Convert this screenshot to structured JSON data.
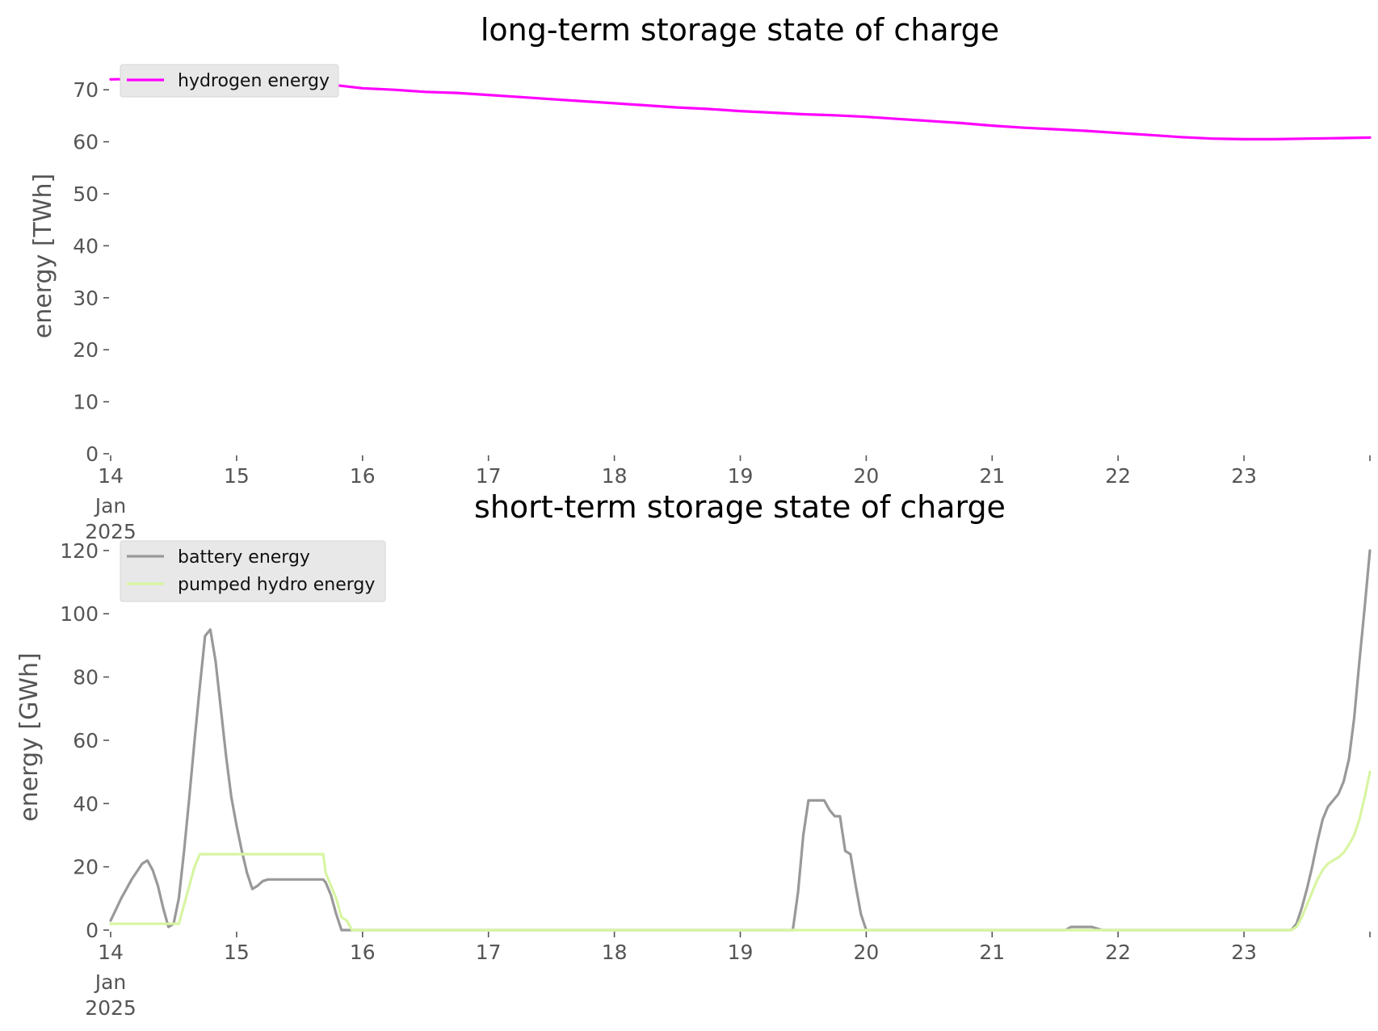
{
  "chart_data": [
    {
      "type": "line",
      "title": "long-term storage state of charge",
      "ylabel": "energy [TWh]",
      "xlim": [
        0,
        240
      ],
      "ylim": [
        0,
        75
      ],
      "x_ticks": [
        {
          "x": 0,
          "label": "14",
          "sub": [
            "Jan",
            "2025"
          ]
        },
        {
          "x": 24,
          "label": "15"
        },
        {
          "x": 48,
          "label": "16"
        },
        {
          "x": 72,
          "label": "17"
        },
        {
          "x": 96,
          "label": "18"
        },
        {
          "x": 120,
          "label": "19"
        },
        {
          "x": 144,
          "label": "20"
        },
        {
          "x": 168,
          "label": "21"
        },
        {
          "x": 192,
          "label": "22"
        },
        {
          "x": 216,
          "label": "23"
        },
        {
          "x": 240,
          "label": ""
        }
      ],
      "y_ticks": [
        0,
        10,
        20,
        30,
        40,
        50,
        60,
        70
      ],
      "grid": false,
      "legend": "top-left",
      "series": [
        {
          "name": "hydrogen energy",
          "color": "#ff00ff",
          "points": [
            [
              0,
              72
            ],
            [
              6,
              72.1
            ],
            [
              12,
              72
            ],
            [
              18,
              72
            ],
            [
              24,
              71.9
            ],
            [
              30,
              71.8
            ],
            [
              36,
              71.5
            ],
            [
              42,
              71
            ],
            [
              48,
              70.3
            ],
            [
              54,
              70
            ],
            [
              60,
              69.6
            ],
            [
              66,
              69.4
            ],
            [
              72,
              69
            ],
            [
              78,
              68.6
            ],
            [
              84,
              68.2
            ],
            [
              90,
              67.8
            ],
            [
              96,
              67.4
            ],
            [
              102,
              67
            ],
            [
              108,
              66.6
            ],
            [
              114,
              66.3
            ],
            [
              120,
              65.9
            ],
            [
              126,
              65.6
            ],
            [
              132,
              65.3
            ],
            [
              138,
              65.1
            ],
            [
              144,
              64.8
            ],
            [
              150,
              64.4
            ],
            [
              156,
              64
            ],
            [
              162,
              63.6
            ],
            [
              168,
              63.1
            ],
            [
              174,
              62.7
            ],
            [
              180,
              62.4
            ],
            [
              186,
              62.1
            ],
            [
              192,
              61.7
            ],
            [
              198,
              61.3
            ],
            [
              204,
              60.9
            ],
            [
              210,
              60.6
            ],
            [
              216,
              60.5
            ],
            [
              222,
              60.5
            ],
            [
              228,
              60.6
            ],
            [
              234,
              60.7
            ],
            [
              240,
              60.8
            ]
          ]
        }
      ]
    },
    {
      "type": "line",
      "title": "short-term storage state of charge",
      "ylabel": "energy [GWh]",
      "xlim": [
        0,
        240
      ],
      "ylim": [
        0,
        122
      ],
      "x_ticks": [
        {
          "x": 0,
          "label": "14",
          "sub": [
            "Jan",
            "2025"
          ]
        },
        {
          "x": 24,
          "label": "15"
        },
        {
          "x": 48,
          "label": "16"
        },
        {
          "x": 72,
          "label": "17"
        },
        {
          "x": 96,
          "label": "18"
        },
        {
          "x": 120,
          "label": "19"
        },
        {
          "x": 144,
          "label": "20"
        },
        {
          "x": 168,
          "label": "21"
        },
        {
          "x": 192,
          "label": "22"
        },
        {
          "x": 216,
          "label": "23"
        },
        {
          "x": 240,
          "label": ""
        }
      ],
      "y_ticks": [
        0,
        20,
        40,
        60,
        80,
        100,
        120
      ],
      "grid": false,
      "legend": "top-left",
      "series": [
        {
          "name": "battery energy",
          "color": "#999999",
          "points": [
            [
              0,
              3
            ],
            [
              2,
              10
            ],
            [
              4,
              16
            ],
            [
              6,
              21
            ],
            [
              7,
              22
            ],
            [
              8,
              19
            ],
            [
              9,
              14
            ],
            [
              10,
              7
            ],
            [
              11,
              1
            ],
            [
              12,
              2
            ],
            [
              13,
              10
            ],
            [
              14,
              25
            ],
            [
              15,
              42
            ],
            [
              16,
              60
            ],
            [
              17,
              77
            ],
            [
              18,
              93
            ],
            [
              19,
              95
            ],
            [
              20,
              85
            ],
            [
              21,
              70
            ],
            [
              22,
              55
            ],
            [
              23,
              42
            ],
            [
              24,
              33
            ],
            [
              25,
              25
            ],
            [
              26,
              18
            ],
            [
              27,
              13
            ],
            [
              28,
              14
            ],
            [
              29,
              15.5
            ],
            [
              30,
              16
            ],
            [
              40,
              16
            ],
            [
              40.5,
              16
            ],
            [
              41,
              15
            ],
            [
              42,
              11
            ],
            [
              43,
              5
            ],
            [
              44,
              0
            ],
            [
              48,
              0
            ],
            [
              60,
              0
            ],
            [
              72,
              0
            ],
            [
              96,
              0
            ],
            [
              120,
              0
            ],
            [
              130,
              0
            ],
            [
              131,
              12
            ],
            [
              132,
              30
            ],
            [
              133,
              41
            ],
            [
              134,
              41
            ],
            [
              135,
              41
            ],
            [
              136,
              41
            ],
            [
              137,
              38
            ],
            [
              138,
              36
            ],
            [
              139,
              36
            ],
            [
              140,
              25
            ],
            [
              141,
              24
            ],
            [
              142,
              14
            ],
            [
              143,
              5
            ],
            [
              144,
              0
            ],
            [
              168,
              0
            ],
            [
              182,
              0
            ],
            [
              183,
              1
            ],
            [
              185,
              1
            ],
            [
              187,
              1
            ],
            [
              189,
              0
            ],
            [
              192,
              0
            ],
            [
              216,
              0
            ],
            [
              225,
              0
            ],
            [
              226,
              2
            ],
            [
              227,
              7
            ],
            [
              228,
              13
            ],
            [
              229,
              20
            ],
            [
              230,
              28
            ],
            [
              231,
              35
            ],
            [
              232,
              39
            ],
            [
              233,
              41
            ],
            [
              234,
              43
            ],
            [
              235,
              47
            ],
            [
              236,
              54
            ],
            [
              237,
              67
            ],
            [
              238,
              85
            ],
            [
              239,
              102
            ],
            [
              240,
              120
            ]
          ]
        },
        {
          "name": "pumped hydro energy",
          "color": "#d8f5a2",
          "points": [
            [
              0,
              2
            ],
            [
              4,
              2
            ],
            [
              8,
              2
            ],
            [
              10,
              2
            ],
            [
              12,
              2
            ],
            [
              13,
              2
            ],
            [
              14,
              8
            ],
            [
              15,
              14
            ],
            [
              16,
              20
            ],
            [
              17,
              24
            ],
            [
              24,
              24
            ],
            [
              30,
              24
            ],
            [
              36,
              24
            ],
            [
              40.5,
              24
            ],
            [
              41,
              18
            ],
            [
              42,
              14
            ],
            [
              43,
              10
            ],
            [
              44,
              4
            ],
            [
              45,
              3
            ],
            [
              46,
              0
            ],
            [
              48,
              0
            ],
            [
              72,
              0
            ],
            [
              96,
              0
            ],
            [
              120,
              0
            ],
            [
              144,
              0
            ],
            [
              168,
              0
            ],
            [
              192,
              0
            ],
            [
              216,
              0
            ],
            [
              225,
              0
            ],
            [
              226,
              1
            ],
            [
              227,
              4
            ],
            [
              228,
              8
            ],
            [
              229,
              12
            ],
            [
              230,
              16
            ],
            [
              231,
              19
            ],
            [
              232,
              21
            ],
            [
              233,
              22
            ],
            [
              234,
              23
            ],
            [
              235,
              24.5
            ],
            [
              236,
              27
            ],
            [
              237,
              30
            ],
            [
              238,
              35
            ],
            [
              239,
              42
            ],
            [
              240,
              50
            ]
          ]
        }
      ]
    }
  ]
}
